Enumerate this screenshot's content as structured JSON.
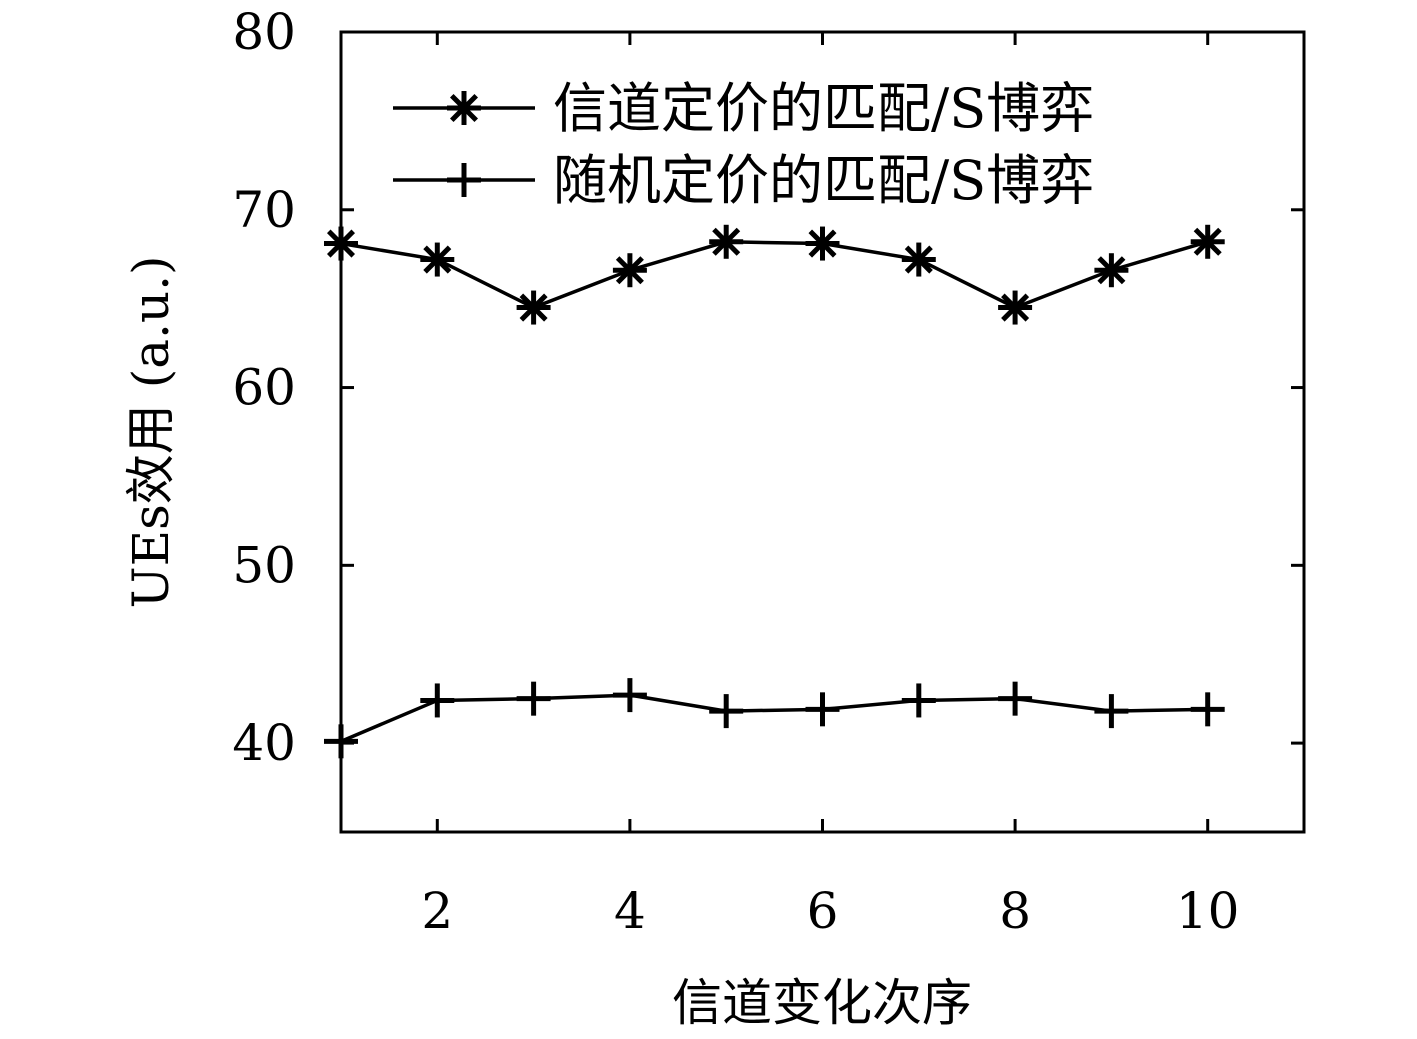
{
  "chart_data": {
    "type": "line",
    "xlabel": "信道变化次序",
    "ylabel": "UEs效用 (a.u.)",
    "xlim": [
      1,
      11
    ],
    "ylim": [
      35,
      80
    ],
    "xticks": [
      2,
      4,
      6,
      8,
      10
    ],
    "yticks": [
      40,
      50,
      60,
      70,
      80
    ],
    "grid": false,
    "legend_position": "top",
    "x": [
      1,
      2,
      3,
      4,
      5,
      6,
      7,
      8,
      9,
      10
    ],
    "series": [
      {
        "name": "信道定价的匹配/S博弈",
        "marker": "asterisk",
        "color": "#000000",
        "values": [
          68.1,
          67.2,
          64.5,
          66.6,
          68.2,
          68.1,
          67.2,
          64.5,
          66.6,
          68.2
        ]
      },
      {
        "name": "随机定价的匹配/S博弈",
        "marker": "plus",
        "color": "#000000",
        "values": [
          40.1,
          42.4,
          42.5,
          42.7,
          41.8,
          41.9,
          42.4,
          42.5,
          41.8,
          41.9
        ]
      }
    ]
  }
}
